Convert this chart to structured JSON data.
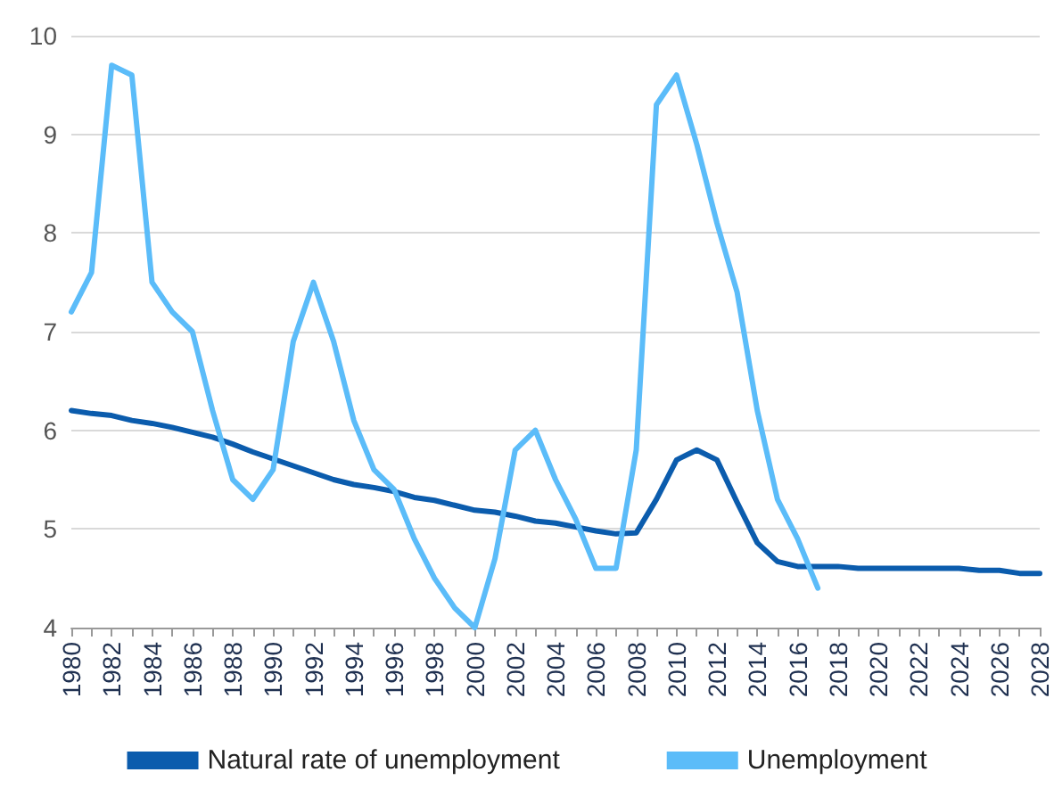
{
  "chart_data": {
    "type": "line",
    "categories": [
      "1980",
      null,
      "1982",
      null,
      "1984",
      null,
      "1986",
      null,
      "1988",
      null,
      "1990",
      null,
      "1992",
      null,
      "1994",
      null,
      "1996",
      null,
      "1998",
      null,
      "2000",
      null,
      "2002",
      null,
      "2004",
      null,
      "2006",
      null,
      "2008",
      null,
      "2010",
      null,
      "2012",
      null,
      "2014",
      null,
      "2016",
      null,
      "2018",
      null,
      "2020",
      null,
      "2022",
      null,
      "2024",
      null,
      "2026",
      null,
      "2028"
    ],
    "series": [
      {
        "name": "Natural rate of unemployment",
        "color": "#0b5cad",
        "values": [
          6.2,
          6.17,
          6.15,
          6.1,
          6.07,
          6.03,
          5.98,
          5.93,
          5.86,
          5.78,
          5.71,
          5.64,
          5.57,
          5.5,
          5.45,
          5.42,
          5.38,
          5.32,
          5.29,
          5.24,
          5.19,
          5.17,
          5.13,
          5.08,
          5.06,
          5.02,
          4.98,
          4.95,
          4.96,
          5.3,
          5.7,
          5.8,
          5.7,
          5.27,
          4.86,
          4.67,
          4.62,
          4.62,
          4.62,
          4.6,
          4.6,
          4.6,
          4.6,
          4.6,
          4.6,
          4.58,
          4.58,
          4.55,
          4.55
        ]
      },
      {
        "name": "Unemployment",
        "color": "#5bbcf9",
        "values": [
          7.2,
          7.6,
          9.7,
          9.6,
          7.5,
          7.2,
          7.0,
          6.2,
          5.5,
          5.3,
          5.6,
          6.9,
          7.5,
          6.9,
          6.1,
          5.6,
          5.4,
          4.9,
          4.5,
          4.2,
          4.0,
          4.7,
          5.8,
          6.0,
          5.5,
          5.1,
          4.6,
          4.6,
          5.8,
          9.3,
          9.6,
          8.9,
          8.1,
          7.4,
          6.2,
          5.3,
          4.9,
          4.4,
          null,
          null,
          null,
          null,
          null,
          null,
          null,
          null,
          null,
          null,
          null
        ]
      }
    ],
    "ylim": [
      4,
      10
    ],
    "yticks": [
      4,
      5,
      6,
      7,
      8,
      9,
      10
    ],
    "grid": "y",
    "legend": "bottom",
    "marker": "none",
    "line_style": "solid"
  }
}
